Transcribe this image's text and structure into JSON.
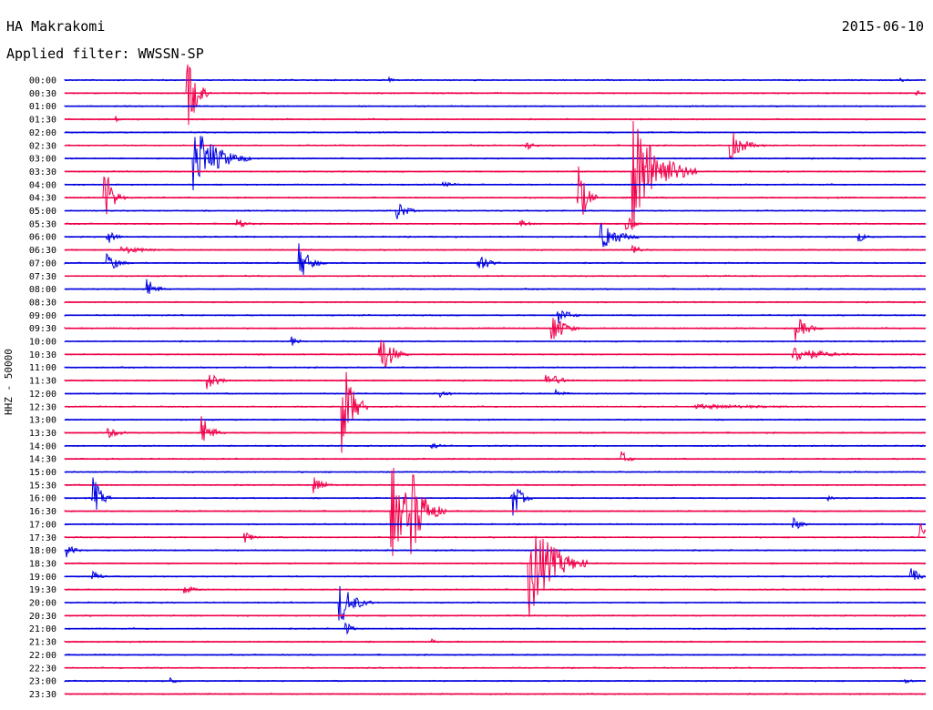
{
  "header": {
    "station": "HA Makrakomi",
    "date": "2015-06-10",
    "filter": "Applied filter: WWSSN-SP"
  },
  "chart_data": {
    "type": "seismogram",
    "ylabel": "HHZ - 50000",
    "x_range_minutes": [
      0,
      30
    ],
    "rows": [
      "00:00",
      "00:30",
      "01:00",
      "01:30",
      "02:00",
      "02:30",
      "03:00",
      "03:30",
      "04:00",
      "04:30",
      "05:00",
      "05:30",
      "06:00",
      "06:30",
      "07:00",
      "07:30",
      "08:00",
      "08:30",
      "09:00",
      "09:30",
      "10:00",
      "10:30",
      "11:00",
      "11:30",
      "12:00",
      "12:30",
      "13:00",
      "13:30",
      "14:00",
      "14:30",
      "15:00",
      "15:30",
      "16:00",
      "16:30",
      "17:00",
      "17:30",
      "18:00",
      "18:30",
      "19:00",
      "19:30",
      "20:00",
      "20:30",
      "21:00",
      "21:30",
      "22:00",
      "22:30",
      "23:00",
      "23:30"
    ],
    "colors": [
      "#0000e0",
      "#f0004a"
    ],
    "events": [
      {
        "row": 0,
        "minute": 11.3,
        "amplitude": 4,
        "duration": 0.6
      },
      {
        "row": 0,
        "minute": 29.1,
        "amplitude": 4,
        "duration": 0.6
      },
      {
        "row": 1,
        "minute": 4.3,
        "amplitude": 45,
        "duration": 0.8
      },
      {
        "row": 1,
        "minute": 29.7,
        "amplitude": 3,
        "duration": 0.6
      },
      {
        "row": 3,
        "minute": 1.8,
        "amplitude": 3,
        "duration": 0.6
      },
      {
        "row": 5,
        "minute": 16.1,
        "amplitude": 5,
        "duration": 0.8
      },
      {
        "row": 5,
        "minute": 23.2,
        "amplitude": 18,
        "duration": 1.2
      },
      {
        "row": 6,
        "minute": 4.5,
        "amplitude": 40,
        "duration": 2.0
      },
      {
        "row": 7,
        "minute": 19.8,
        "amplitude": 70,
        "duration": 2.2
      },
      {
        "row": 8,
        "minute": 13.2,
        "amplitude": 3,
        "duration": 1.5
      },
      {
        "row": 9,
        "minute": 1.4,
        "amplitude": 38,
        "duration": 0.7
      },
      {
        "row": 9,
        "minute": 17.9,
        "amplitude": 40,
        "duration": 0.7
      },
      {
        "row": 10,
        "minute": 11.6,
        "amplitude": 12,
        "duration": 0.8
      },
      {
        "row": 11,
        "minute": 6.0,
        "amplitude": 7,
        "duration": 0.8
      },
      {
        "row": 11,
        "minute": 15.9,
        "amplitude": 5,
        "duration": 0.8
      },
      {
        "row": 11,
        "minute": 19.6,
        "amplitude": 10,
        "duration": 0.6
      },
      {
        "row": 12,
        "minute": 1.5,
        "amplitude": 8,
        "duration": 0.8
      },
      {
        "row": 12,
        "minute": 18.7,
        "amplitude": 20,
        "duration": 1.4
      },
      {
        "row": 12,
        "minute": 27.7,
        "amplitude": 5,
        "duration": 1.0
      },
      {
        "row": 13,
        "minute": 2.0,
        "amplitude": 5,
        "duration": 2.0
      },
      {
        "row": 13,
        "minute": 19.8,
        "amplitude": 8,
        "duration": 0.6
      },
      {
        "row": 14,
        "minute": 1.5,
        "amplitude": 12,
        "duration": 0.9
      },
      {
        "row": 14,
        "minute": 8.2,
        "amplitude": 22,
        "duration": 0.9
      },
      {
        "row": 14,
        "minute": 14.4,
        "amplitude": 15,
        "duration": 0.8
      },
      {
        "row": 16,
        "minute": 2.9,
        "amplitude": 12,
        "duration": 0.8
      },
      {
        "row": 18,
        "minute": 17.2,
        "amplitude": 10,
        "duration": 1.0
      },
      {
        "row": 19,
        "minute": 17.0,
        "amplitude": 20,
        "duration": 1.0
      },
      {
        "row": 19,
        "minute": 25.5,
        "amplitude": 14,
        "duration": 1.0
      },
      {
        "row": 20,
        "minute": 7.9,
        "amplitude": 6,
        "duration": 0.6
      },
      {
        "row": 21,
        "minute": 11.0,
        "amplitude": 28,
        "duration": 1.0
      },
      {
        "row": 21,
        "minute": 25.4,
        "amplitude": 10,
        "duration": 2.5
      },
      {
        "row": 23,
        "minute": 5.0,
        "amplitude": 10,
        "duration": 1.0
      },
      {
        "row": 23,
        "minute": 16.8,
        "amplitude": 10,
        "duration": 1.2
      },
      {
        "row": 24,
        "minute": 13.1,
        "amplitude": 5,
        "duration": 0.8
      },
      {
        "row": 24,
        "minute": 17.1,
        "amplitude": 6,
        "duration": 0.8
      },
      {
        "row": 25,
        "minute": 9.7,
        "amplitude": 55,
        "duration": 0.9
      },
      {
        "row": 25,
        "minute": 22.0,
        "amplitude": 3,
        "duration": 8.0
      },
      {
        "row": 27,
        "minute": 1.5,
        "amplitude": 6,
        "duration": 1.3
      },
      {
        "row": 27,
        "minute": 4.8,
        "amplitude": 20,
        "duration": 0.8
      },
      {
        "row": 28,
        "minute": 12.8,
        "amplitude": 5,
        "duration": 0.8
      },
      {
        "row": 29,
        "minute": 19.4,
        "amplitude": 10,
        "duration": 0.6
      },
      {
        "row": 31,
        "minute": 8.7,
        "amplitude": 12,
        "duration": 0.8
      },
      {
        "row": 32,
        "minute": 1.0,
        "amplitude": 25,
        "duration": 0.7
      },
      {
        "row": 32,
        "minute": 15.6,
        "amplitude": 25,
        "duration": 0.7
      },
      {
        "row": 32,
        "minute": 26.6,
        "amplitude": 3,
        "duration": 1.5
      },
      {
        "row": 33,
        "minute": 11.4,
        "amplitude": 55,
        "duration": 1.4
      },
      {
        "row": 33,
        "minute": 12.1,
        "amplitude": 50,
        "duration": 1.2
      },
      {
        "row": 34,
        "minute": 25.4,
        "amplitude": 8,
        "duration": 0.8
      },
      {
        "row": 35,
        "minute": 6.3,
        "amplitude": 7,
        "duration": 0.7
      },
      {
        "row": 35,
        "minute": 29.8,
        "amplitude": 20,
        "duration": 0.6
      },
      {
        "row": 36,
        "minute": 0.1,
        "amplitude": 10,
        "duration": 0.6
      },
      {
        "row": 37,
        "minute": 16.2,
        "amplitude": 60,
        "duration": 2.0
      },
      {
        "row": 38,
        "minute": 1.0,
        "amplitude": 6,
        "duration": 0.7
      },
      {
        "row": 38,
        "minute": 29.5,
        "amplitude": 10,
        "duration": 0.8
      },
      {
        "row": 39,
        "minute": 4.2,
        "amplitude": 6,
        "duration": 0.8
      },
      {
        "row": 40,
        "minute": 9.6,
        "amplitude": 25,
        "duration": 1.2
      },
      {
        "row": 42,
        "minute": 9.8,
        "amplitude": 10,
        "duration": 0.5
      },
      {
        "row": 43,
        "minute": 12.8,
        "amplitude": 3,
        "duration": 0.6
      },
      {
        "row": 46,
        "minute": 3.7,
        "amplitude": 6,
        "duration": 0.5
      },
      {
        "row": 46,
        "minute": 29.3,
        "amplitude": 4,
        "duration": 0.6
      }
    ]
  }
}
